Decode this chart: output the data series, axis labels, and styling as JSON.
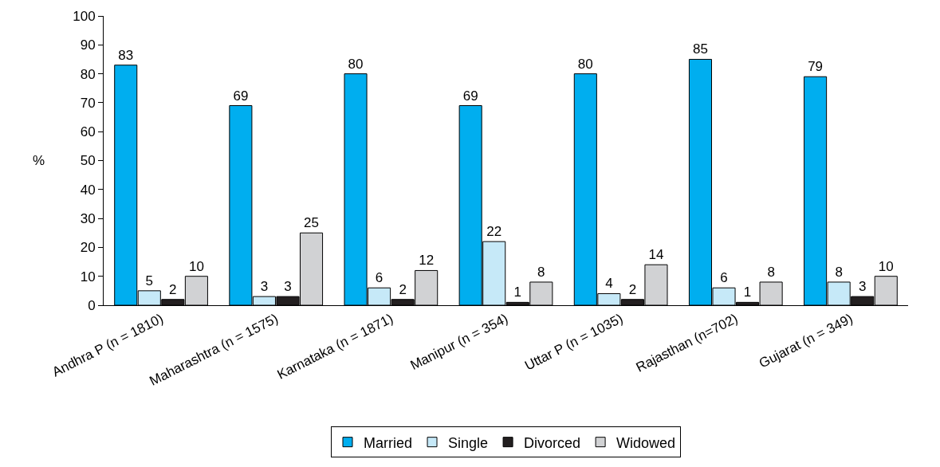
{
  "chart_data": {
    "type": "bar",
    "ylabel": "%",
    "categories": [
      "Andhra P (n = 1810)",
      "Maharashtra (n = 1575)",
      "Karnataka (n = 1871)",
      "Manipur (n = 354)",
      "Uttar P (n = 1035)",
      "Rajasthan (n=702)",
      "Gujarat (n = 349)"
    ],
    "series": [
      {
        "name": "Married",
        "color": "#00aeef",
        "values": [
          83,
          69,
          80,
          69,
          80,
          85,
          79
        ]
      },
      {
        "name": "Single",
        "color": "#c6e9f8",
        "values": [
          5,
          3,
          6,
          22,
          4,
          6,
          8
        ]
      },
      {
        "name": "Divorced",
        "color": "#231f20",
        "values": [
          2,
          3,
          2,
          1,
          2,
          1,
          3
        ]
      },
      {
        "name": "Widowed",
        "color": "#d1d2d4",
        "values": [
          10,
          25,
          12,
          8,
          14,
          8,
          10
        ]
      }
    ],
    "ylim": [
      0,
      100
    ],
    "yticks": [
      0,
      10,
      20,
      30,
      40,
      50,
      60,
      70,
      80,
      90,
      100
    ],
    "grid": false,
    "legend": "bottom",
    "data_labels": true
  }
}
